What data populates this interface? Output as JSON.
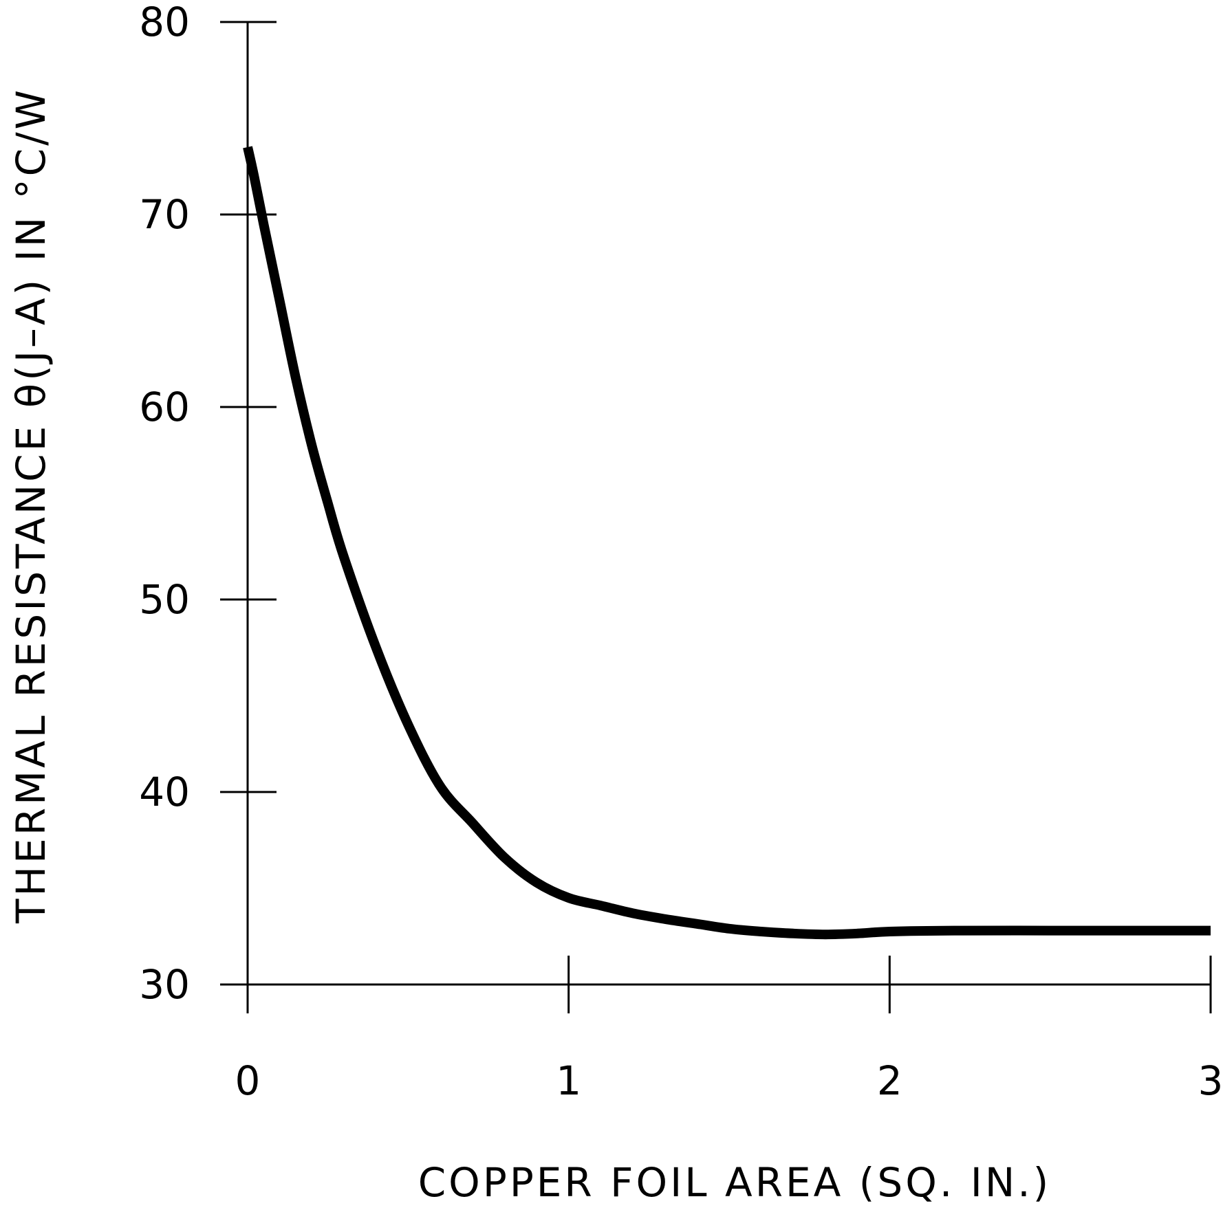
{
  "chart_data": {
    "type": "line",
    "title": "",
    "xlabel": "COPPER FOIL AREA (SQ. IN.)",
    "ylabel": "THERMAL RESISTANCE θ(J–A) IN °C/W",
    "xlim": [
      0,
      3
    ],
    "ylim": [
      30,
      80
    ],
    "x_ticks": [
      "0",
      "1",
      "2",
      "3"
    ],
    "y_ticks": [
      "30",
      "40",
      "50",
      "60",
      "70",
      "80"
    ],
    "grid": false,
    "series": [
      {
        "x": [
          0,
          0.02,
          0.05,
          0.1,
          0.15,
          0.2,
          0.25,
          0.3,
          0.4,
          0.5,
          0.6,
          0.7,
          0.8,
          0.9,
          1.0,
          1.1,
          1.2,
          1.3,
          1.4,
          1.5,
          1.6,
          1.7,
          1.8,
          1.9,
          2.0,
          2.2,
          2.5,
          2.8,
          3.0
        ],
        "y": [
          73.5,
          72.0,
          69.5,
          65.5,
          61.5,
          58.0,
          55.0,
          52.2,
          47.5,
          43.5,
          40.3,
          38.4,
          36.6,
          35.3,
          34.5,
          34.1,
          33.7,
          33.4,
          33.15,
          32.9,
          32.75,
          32.65,
          32.6,
          32.65,
          32.75,
          32.8,
          32.8,
          32.8,
          32.8
        ],
        "color": "#000000"
      }
    ]
  }
}
